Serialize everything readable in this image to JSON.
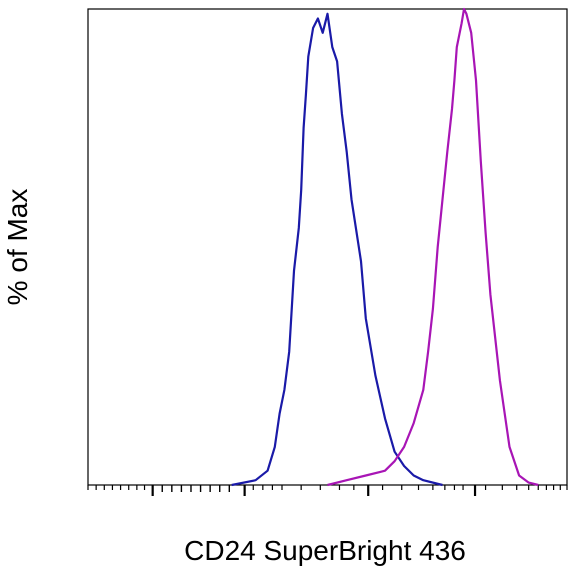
{
  "chart_data": {
    "type": "line",
    "title": "",
    "xlabel": "CD24 SuperBright 436",
    "ylabel": "% of Max",
    "x_scale": "biexponential",
    "x_tick_labels": [],
    "y_tick_labels": [],
    "ylim": [
      0,
      100
    ],
    "grid": false,
    "legend": "none",
    "series": [
      {
        "color": "#1a1aa8",
        "points": [
          [
            0.3,
            0
          ],
          [
            0.35,
            1
          ],
          [
            0.375,
            3
          ],
          [
            0.39,
            8
          ],
          [
            0.4,
            15
          ],
          [
            0.41,
            20
          ],
          [
            0.42,
            28
          ],
          [
            0.43,
            45
          ],
          [
            0.44,
            54
          ],
          [
            0.445,
            62
          ],
          [
            0.45,
            75
          ],
          [
            0.455,
            82
          ],
          [
            0.46,
            90
          ],
          [
            0.47,
            96
          ],
          [
            0.48,
            98
          ],
          [
            0.49,
            95
          ],
          [
            0.5,
            99
          ],
          [
            0.51,
            92
          ],
          [
            0.52,
            89
          ],
          [
            0.53,
            78
          ],
          [
            0.54,
            70
          ],
          [
            0.55,
            60
          ],
          [
            0.57,
            47
          ],
          [
            0.58,
            35
          ],
          [
            0.6,
            23
          ],
          [
            0.62,
            14
          ],
          [
            0.64,
            7
          ],
          [
            0.66,
            4
          ],
          [
            0.68,
            2
          ],
          [
            0.7,
            1
          ],
          [
            0.74,
            0
          ]
        ]
      },
      {
        "color": "#a815b5",
        "points": [
          [
            0.5,
            0
          ],
          [
            0.54,
            1
          ],
          [
            0.58,
            2
          ],
          [
            0.62,
            3
          ],
          [
            0.64,
            5
          ],
          [
            0.66,
            8
          ],
          [
            0.68,
            13
          ],
          [
            0.7,
            20
          ],
          [
            0.71,
            28
          ],
          [
            0.72,
            37
          ],
          [
            0.73,
            50
          ],
          [
            0.74,
            60
          ],
          [
            0.75,
            70
          ],
          [
            0.76,
            79
          ],
          [
            0.765,
            85
          ],
          [
            0.77,
            92
          ],
          [
            0.78,
            97
          ],
          [
            0.785,
            100
          ],
          [
            0.79,
            99
          ],
          [
            0.8,
            95
          ],
          [
            0.81,
            85
          ],
          [
            0.82,
            68
          ],
          [
            0.83,
            53
          ],
          [
            0.84,
            40
          ],
          [
            0.86,
            22
          ],
          [
            0.88,
            8
          ],
          [
            0.9,
            2
          ],
          [
            0.92,
            0.5
          ],
          [
            0.94,
            0
          ]
        ]
      }
    ]
  }
}
